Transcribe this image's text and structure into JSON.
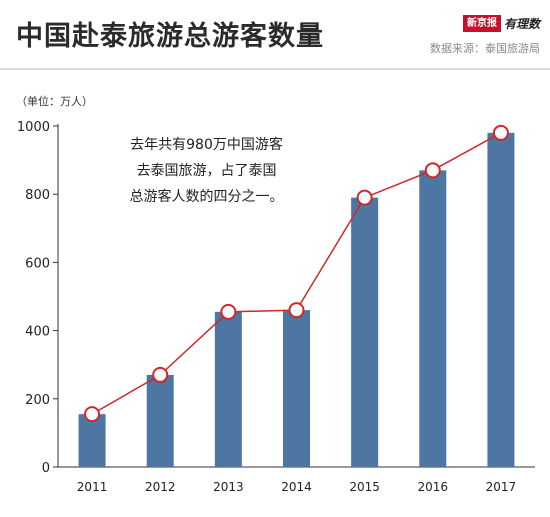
{
  "header": {
    "title": "中国赴泰旅游总游客数量",
    "source": "数据来源：泰国旅游局",
    "brand_name": "新京报",
    "brand_sub": "有理数"
  },
  "unit_label": "（单位：万人）",
  "annotation": {
    "lines": [
      "去年共有980万中国游客",
      "去泰国旅游，占了泰国",
      "总游客人数的四分之一。"
    ]
  },
  "colors": {
    "bar": "#4d76a3",
    "line": "#d0282a",
    "axis": "#333333",
    "title": "#2b2b2b"
  },
  "chart_data": {
    "type": "bar",
    "categories": [
      "2011",
      "2012",
      "2013",
      "2014",
      "2015",
      "2016",
      "2017"
    ],
    "series": [
      {
        "values": [
          155,
          270,
          455,
          460,
          790,
          870,
          980
        ]
      }
    ],
    "overlay_line_values": [
      155,
      270,
      455,
      460,
      790,
      870,
      980
    ],
    "ylim": [
      0,
      1000
    ],
    "yticks": [
      0,
      200,
      400,
      600,
      800,
      1000
    ],
    "title": "中国赴泰旅游总游客数量",
    "xlabel": "",
    "ylabel": "（单位：万人）",
    "grid": false,
    "legend": "none"
  }
}
